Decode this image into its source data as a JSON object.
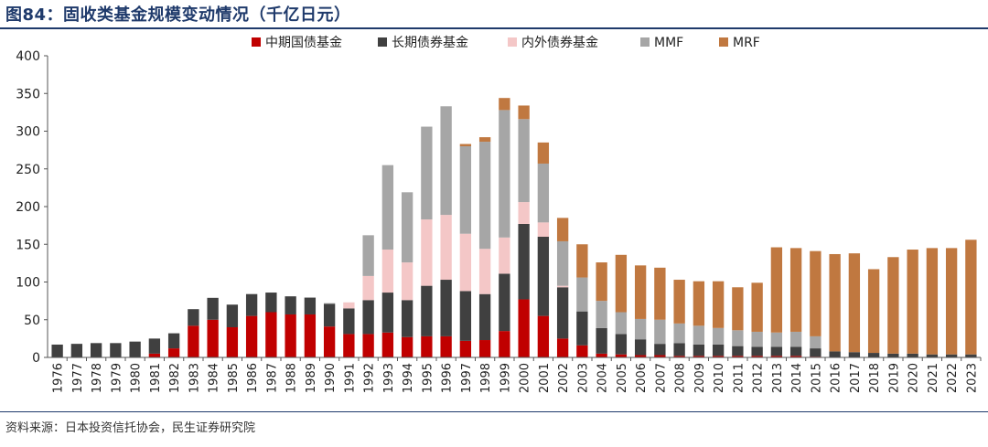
{
  "figure": {
    "title": "图84：固收类基金规模变动情况（千亿日元）",
    "source": "资料来源：日本投资信托协会，民生证券研究院"
  },
  "chart_data": {
    "type": "bar",
    "stacked": true,
    "title": "图84：固收类基金规模变动情况（千亿日元）",
    "xlabel": "",
    "ylabel": "",
    "ylim": [
      0,
      400
    ],
    "yticks": [
      0,
      50,
      100,
      150,
      200,
      250,
      300,
      350,
      400
    ],
    "legend_position": "top",
    "grid": false,
    "categories": [
      "1976",
      "1977",
      "1978",
      "1979",
      "1980",
      "1981",
      "1982",
      "1983",
      "1984",
      "1985",
      "1986",
      "1987",
      "1988",
      "1989",
      "1990",
      "1991",
      "1992",
      "1993",
      "1994",
      "1995",
      "1996",
      "1997",
      "1998",
      "1999",
      "2000",
      "2001",
      "2002",
      "2003",
      "2004",
      "2005",
      "2006",
      "2007",
      "2008",
      "2009",
      "2010",
      "2011",
      "2012",
      "2013",
      "2014",
      "2015",
      "2016",
      "2017",
      "2018",
      "2019",
      "2020",
      "2021",
      "2022",
      "2023"
    ],
    "series": [
      {
        "name": "中期国债基金",
        "color": "#c00000",
        "values": [
          0,
          0,
          0,
          0,
          0,
          5,
          12,
          42,
          50,
          40,
          55,
          60,
          57,
          57,
          41,
          31,
          31,
          33,
          27,
          28,
          28,
          22,
          23,
          35,
          77,
          55,
          25,
          16,
          5,
          4,
          3,
          3,
          2,
          2,
          2,
          2,
          2,
          2,
          2,
          1,
          0,
          0,
          0,
          0,
          0,
          0,
          0,
          0
        ]
      },
      {
        "name": "长期债券基金",
        "color": "#404040",
        "values": [
          17,
          18,
          19,
          19,
          21,
          20,
          20,
          22,
          29,
          30,
          29,
          26,
          24,
          22,
          30,
          34,
          45,
          53,
          49,
          67,
          75,
          66,
          61,
          76,
          100,
          105,
          68,
          45,
          34,
          27,
          21,
          15,
          17,
          15,
          15,
          13,
          12,
          12,
          12,
          11,
          8,
          7,
          6,
          5,
          5,
          4,
          4,
          4
        ]
      },
      {
        "name": "内外债券基金",
        "color": "#f4c7c7",
        "values": [
          0,
          0,
          0,
          0,
          0,
          0,
          0,
          0,
          0,
          0,
          0,
          0,
          0,
          0,
          0,
          8,
          32,
          57,
          50,
          88,
          86,
          76,
          60,
          48,
          29,
          19,
          2,
          0,
          0,
          0,
          0,
          0,
          0,
          0,
          0,
          0,
          0,
          0,
          0,
          0,
          0,
          0,
          0,
          0,
          0,
          0,
          0,
          0
        ]
      },
      {
        "name": "MMF",
        "color": "#a6a6a6",
        "values": [
          0,
          0,
          0,
          0,
          0,
          0,
          0,
          0,
          0,
          0,
          0,
          0,
          0,
          1,
          1,
          0,
          54,
          112,
          93,
          123,
          144,
          116,
          142,
          169,
          110,
          78,
          59,
          45,
          36,
          29,
          27,
          32,
          26,
          25,
          22,
          21,
          20,
          19,
          20,
          16,
          0,
          0,
          0,
          0,
          0,
          0,
          0,
          0
        ]
      },
      {
        "name": "MRF",
        "color": "#c07840",
        "values": [
          0,
          0,
          0,
          0,
          0,
          0,
          0,
          0,
          0,
          0,
          0,
          0,
          0,
          0,
          0,
          0,
          0,
          0,
          0,
          0,
          0,
          3,
          6,
          16,
          18,
          28,
          31,
          44,
          51,
          76,
          71,
          69,
          58,
          59,
          62,
          57,
          65,
          113,
          111,
          113,
          129,
          131,
          111,
          128,
          138,
          141,
          141,
          152
        ]
      }
    ]
  }
}
